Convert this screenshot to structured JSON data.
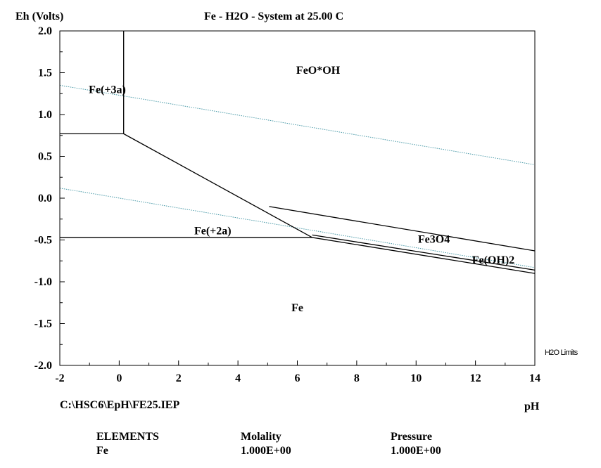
{
  "chart_data": {
    "type": "line",
    "title": "Fe - H2O - System at 25.00 C",
    "xlabel": "pH",
    "ylabel": "Eh (Volts)",
    "xlim": [
      -2,
      14
    ],
    "ylim": [
      -2.0,
      2.0
    ],
    "x_ticks": [
      -2,
      0,
      2,
      4,
      6,
      8,
      10,
      12,
      14
    ],
    "y_ticks": [
      2.0,
      1.5,
      1.0,
      0.5,
      0.0,
      -0.5,
      -1.0,
      -1.5,
      -2.0
    ],
    "x_tick_labels": [
      "-2",
      "0",
      "2",
      "4",
      "6",
      "8",
      "10",
      "12",
      "14"
    ],
    "y_tick_labels": [
      "2.0",
      "1.5",
      "1.0",
      "0.5",
      "0.0",
      "-0.5",
      "-1.0",
      "-1.5",
      "-2.0"
    ],
    "grid": false,
    "boundaries": [
      {
        "x": [
          0.15,
          0.15
        ],
        "y": [
          2.0,
          0.77
        ]
      },
      {
        "x": [
          -2,
          0.15
        ],
        "y": [
          0.77,
          0.77
        ]
      },
      {
        "x": [
          0.15,
          6.5
        ],
        "y": [
          0.77,
          -0.47
        ]
      },
      {
        "x": [
          -2,
          6.5
        ],
        "y": [
          -0.47,
          -0.47
        ]
      },
      {
        "x": [
          5.05,
          14
        ],
        "y": [
          -0.1,
          -0.63
        ]
      },
      {
        "x": [
          6.5,
          14
        ],
        "y": [
          -0.44,
          -0.86
        ]
      },
      {
        "x": [
          6.5,
          14
        ],
        "y": [
          -0.47,
          -0.9
        ]
      }
    ],
    "water_limits": [
      {
        "x": [
          -2,
          14
        ],
        "y": [
          1.35,
          0.4
        ]
      },
      {
        "x": [
          -2,
          14
        ],
        "y": [
          0.12,
          -0.83
        ]
      }
    ],
    "water_limits_color": "#4a9aa8",
    "species_labels": [
      {
        "text": "FeO*OH",
        "x": 6.7,
        "y": 1.53
      },
      {
        "text": "Fe(+3a)",
        "x": -0.4,
        "y": 1.3
      },
      {
        "text": "Fe(+2a)",
        "x": 3.15,
        "y": -0.39
      },
      {
        "text": "Fe3O4",
        "x": 10.6,
        "y": -0.49
      },
      {
        "text": "Fe(OH)2",
        "x": 12.6,
        "y": -0.74
      },
      {
        "text": "Fe",
        "x": 6.0,
        "y": -1.31
      }
    ],
    "legend_text": "H2O Limits",
    "legend_placement": "right"
  },
  "footer": {
    "file_path": "C:\\HSC6\\EpH\\FE25.IEP",
    "elements_header": "ELEMENTS",
    "molality_header": "Molality",
    "pressure_header": "Pressure",
    "element": "Fe",
    "molality": "1.000E+00",
    "pressure": "1.000E+00"
  }
}
